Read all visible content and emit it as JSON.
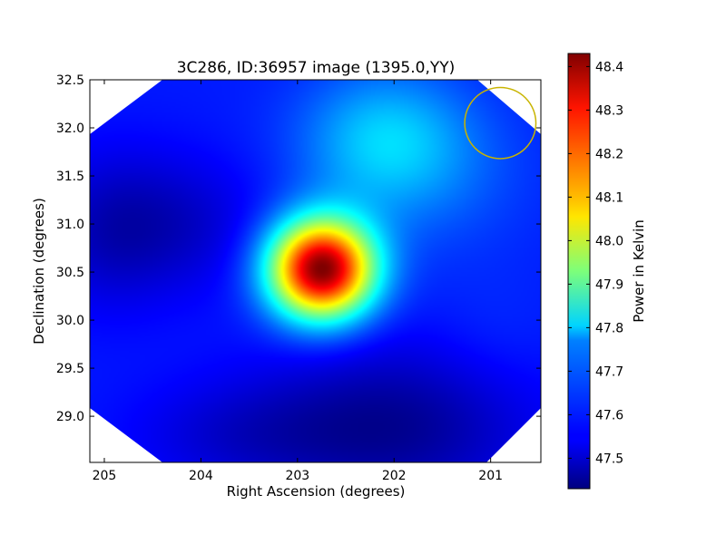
{
  "chart_data": {
    "type": "heatmap",
    "title": "3C286, ID:36957 image (1395.0,YY)",
    "xlabel": "Right Ascension (degrees)",
    "ylabel": "Declination (degrees)",
    "colorbar_label": "Power in Kelvin",
    "colormap": "jet",
    "xlim": [
      205.15,
      200.48
    ],
    "ylim": [
      28.52,
      32.5
    ],
    "clim": [
      47.43,
      48.43
    ],
    "x_ticks": [
      205,
      204,
      203,
      202,
      201
    ],
    "x_tick_labels": [
      "205",
      "204",
      "203",
      "202",
      "201"
    ],
    "y_ticks": [
      29.0,
      29.5,
      30.0,
      30.5,
      31.0,
      31.5,
      32.0,
      32.5
    ],
    "y_tick_labels": [
      "29.0",
      "29.5",
      "30.0",
      "30.5",
      "31.0",
      "31.5",
      "32.0",
      "32.5"
    ],
    "colorbar_ticks": [
      47.5,
      47.6,
      47.7,
      47.8,
      47.9,
      48.0,
      48.1,
      48.2,
      48.3,
      48.4
    ],
    "colorbar_tick_labels": [
      "47.5",
      "47.6",
      "47.7",
      "47.8",
      "47.9",
      "48.0",
      "48.1",
      "48.2",
      "48.3",
      "48.4"
    ],
    "background_level": 47.58,
    "features": [
      {
        "kind": "gaussian",
        "ra": 202.75,
        "dec": 30.53,
        "sigma_ra": 0.38,
        "sigma_dec": 0.36,
        "amplitude": 0.85
      },
      {
        "kind": "gaussian",
        "ra": 202.1,
        "dec": 31.9,
        "sigma_ra": 0.6,
        "sigma_dec": 0.5,
        "amplitude": 0.15
      },
      {
        "kind": "gaussian",
        "ra": 201.7,
        "dec": 31.5,
        "sigma_ra": 0.8,
        "sigma_dec": 0.6,
        "amplitude": 0.06
      },
      {
        "kind": "gaussian",
        "ra": 204.3,
        "dec": 31.0,
        "sigma_ra": 0.7,
        "sigma_dec": 0.5,
        "amplitude": -0.08
      },
      {
        "kind": "gaussian",
        "ra": 205.0,
        "dec": 30.9,
        "sigma_ra": 0.5,
        "sigma_dec": 0.6,
        "amplitude": -0.06
      },
      {
        "kind": "gaussian",
        "ra": 202.0,
        "dec": 28.9,
        "sigma_ra": 1.0,
        "sigma_dec": 0.6,
        "amplitude": -0.13
      },
      {
        "kind": "gaussian",
        "ra": 203.6,
        "dec": 28.8,
        "sigma_ra": 0.8,
        "sigma_dec": 0.4,
        "amplitude": -0.06
      },
      {
        "kind": "gaussian",
        "ra": 201.0,
        "dec": 29.8,
        "sigma_ra": 0.5,
        "sigma_dec": 0.5,
        "amplitude": 0.02
      }
    ],
    "beam_marker": {
      "ra": 200.9,
      "dec": 32.05,
      "radius_deg": 0.37,
      "color": "#c8b400"
    },
    "grid": false
  }
}
